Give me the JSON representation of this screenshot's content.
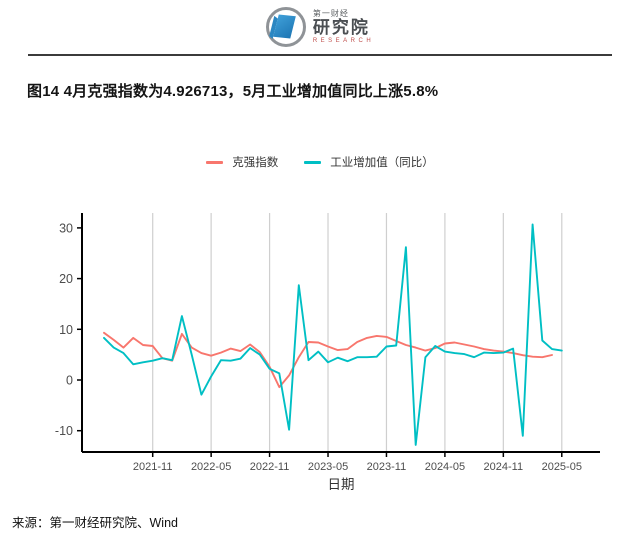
{
  "logo": {
    "brand_small": "第一财经",
    "brand_large": "研究院",
    "brand_en": "RESEARCH"
  },
  "title": "图14 4月克强指数为4.926713，5月工业增加值同比上涨5.8%",
  "source": "来源：第一财经研究院、Wind",
  "chart_data": {
    "type": "line",
    "title": "",
    "xlabel": "日期",
    "ylabel": "",
    "grid": "vertical-only",
    "legend_position": "top",
    "ylim": [
      -14,
      32.5
    ],
    "yticks": [
      30,
      20,
      10,
      0,
      -10
    ],
    "xticks": [
      "2021-11",
      "2022-05",
      "2022-11",
      "2023-05",
      "2023-11",
      "2024-05",
      "2024-11",
      "2025-05"
    ],
    "x": [
      "2021-06",
      "2021-07",
      "2021-08",
      "2021-09",
      "2021-10",
      "2021-11",
      "2021-12",
      "2022-01",
      "2022-02",
      "2022-03",
      "2022-04",
      "2022-05",
      "2022-06",
      "2022-07",
      "2022-08",
      "2022-09",
      "2022-10",
      "2022-11",
      "2022-12",
      "2023-01",
      "2023-02",
      "2023-03",
      "2023-04",
      "2023-05",
      "2023-06",
      "2023-07",
      "2023-08",
      "2023-09",
      "2023-10",
      "2023-11",
      "2023-12",
      "2024-01",
      "2024-02",
      "2024-03",
      "2024-04",
      "2024-05",
      "2024-06",
      "2024-07",
      "2024-08",
      "2024-09",
      "2024-10",
      "2024-11",
      "2024-12",
      "2025-01",
      "2025-02",
      "2025-03",
      "2025-04",
      "2025-05"
    ],
    "series": [
      {
        "name": "克强指数",
        "color": "#F8766D",
        "values": [
          9.3,
          7.9,
          6.4,
          8.3,
          6.9,
          6.7,
          4.3,
          3.8,
          9.1,
          6.4,
          5.3,
          4.8,
          5.4,
          6.2,
          5.7,
          7.0,
          5.5,
          2.6,
          -1.4,
          0.9,
          4.5,
          7.5,
          7.4,
          6.6,
          5.9,
          6.1,
          7.5,
          8.3,
          8.7,
          8.5,
          7.7,
          6.9,
          6.4,
          5.8,
          6.3,
          7.2,
          7.4,
          7.0,
          6.6,
          6.1,
          5.8,
          5.6,
          5.3,
          4.9,
          4.6,
          4.5,
          4.926713,
          null
        ]
      },
      {
        "name": "工业增加值（同比）",
        "color": "#00BFC4",
        "values": [
          8.3,
          6.4,
          5.3,
          3.1,
          3.5,
          3.8,
          4.3,
          3.9,
          12.6,
          5.0,
          -2.9,
          0.7,
          3.9,
          3.8,
          4.2,
          6.3,
          5.0,
          2.2,
          1.3,
          -9.8,
          18.7,
          3.9,
          5.6,
          3.5,
          4.4,
          3.7,
          4.5,
          4.5,
          4.6,
          6.6,
          6.8,
          26.2,
          -12.8,
          4.5,
          6.7,
          5.6,
          5.3,
          5.1,
          4.5,
          5.4,
          5.3,
          5.4,
          6.2,
          -11.0,
          30.7,
          7.8,
          6.1,
          5.8
        ]
      }
    ]
  }
}
